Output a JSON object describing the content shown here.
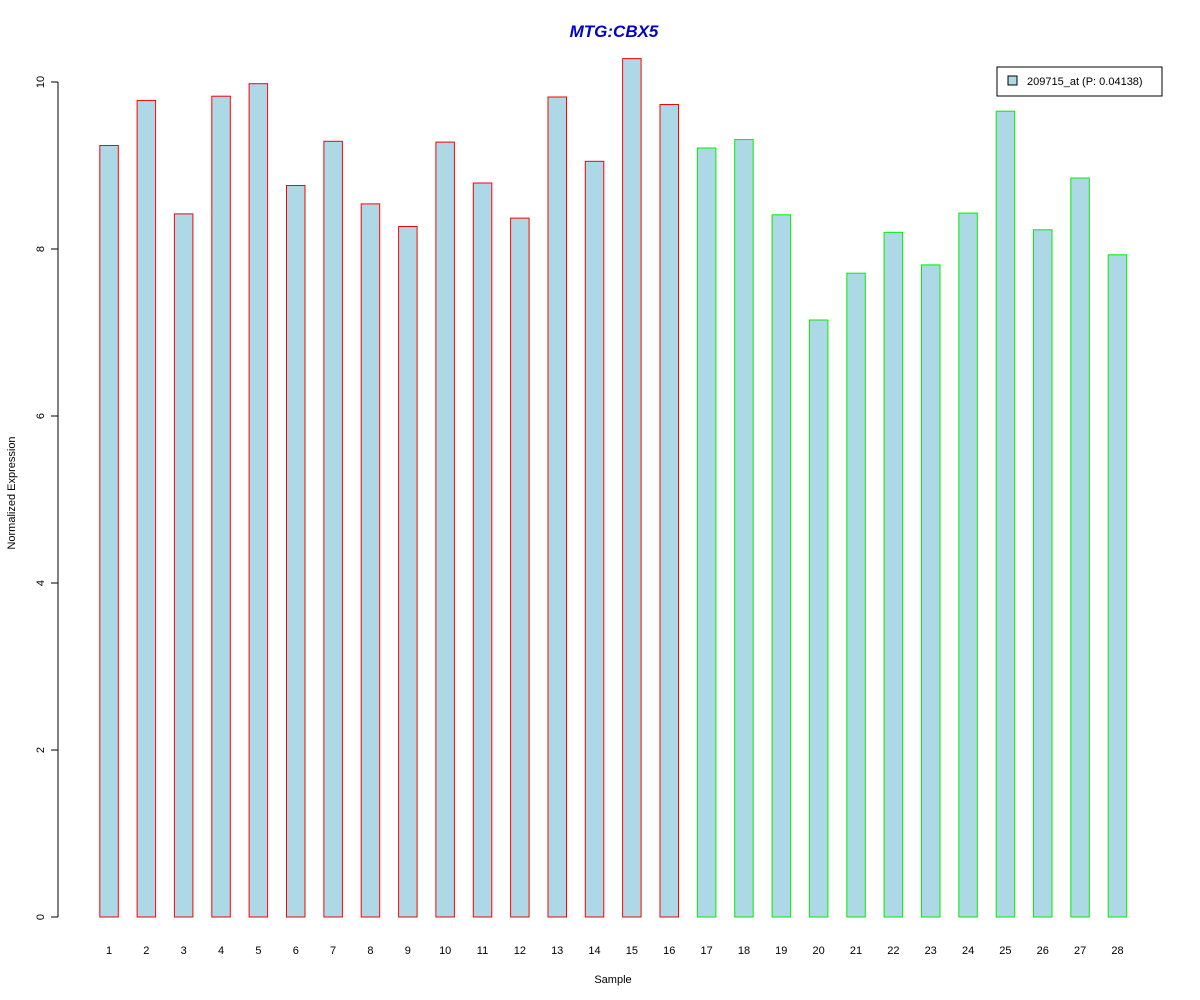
{
  "chart_data": {
    "type": "bar",
    "title": "MTG:CBX5",
    "xlabel": "Sample",
    "ylabel": "Normalized Expression",
    "categories": [
      "1",
      "2",
      "3",
      "4",
      "5",
      "6",
      "7",
      "8",
      "9",
      "10",
      "11",
      "12",
      "13",
      "14",
      "15",
      "16",
      "17",
      "18",
      "19",
      "20",
      "21",
      "22",
      "23",
      "24",
      "25",
      "26",
      "27",
      "28"
    ],
    "values": [
      9.24,
      9.78,
      8.42,
      9.83,
      9.98,
      8.76,
      9.29,
      8.54,
      8.27,
      9.28,
      8.79,
      8.37,
      9.82,
      9.05,
      10.28,
      9.73,
      9.21,
      9.31,
      8.41,
      7.15,
      7.71,
      8.2,
      7.81,
      8.43,
      9.65,
      8.23,
      8.85,
      7.93
    ],
    "edge_groups": [
      {
        "from": 1,
        "to": 16,
        "edge_color": "#ff0000"
      },
      {
        "from": 17,
        "to": 28,
        "edge_color": "#00ee00"
      }
    ],
    "fill_color": "#add8e6",
    "title_color": "#0000cc",
    "yticks": [
      0,
      2,
      4,
      6,
      8,
      10
    ],
    "ylim": [
      0,
      10.3
    ],
    "grid": false,
    "legend": {
      "position": "top-right",
      "entries": [
        {
          "label": "209715_at (P: 0.04138)",
          "color": "#add8e6"
        }
      ]
    }
  }
}
